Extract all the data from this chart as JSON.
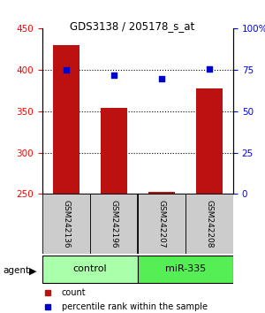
{
  "title": "GDS3138 / 205178_s_at",
  "samples": [
    "GSM242136",
    "GSM242196",
    "GSM242207",
    "GSM242208"
  ],
  "counts": [
    430,
    354,
    253,
    377
  ],
  "percentiles": [
    75.0,
    71.5,
    69.5,
    75.5
  ],
  "ylim_left": [
    250,
    450
  ],
  "ylim_right": [
    0,
    100
  ],
  "yticks_left": [
    250,
    300,
    350,
    400,
    450
  ],
  "yticks_right": [
    0,
    25,
    50,
    75,
    100
  ],
  "ytick_labels_right": [
    "0",
    "25",
    "50",
    "75",
    "100%"
  ],
  "bar_color": "#bb1111",
  "dot_color": "#0000cc",
  "groups": [
    {
      "label": "control",
      "color": "#aaffaa"
    },
    {
      "label": "miR-335",
      "color": "#55ee55"
    }
  ],
  "agent_label": "agent",
  "legend_count_label": "count",
  "legend_pct_label": "percentile rank within the sample",
  "sample_box_color": "#cccccc",
  "bar_width": 0.55
}
